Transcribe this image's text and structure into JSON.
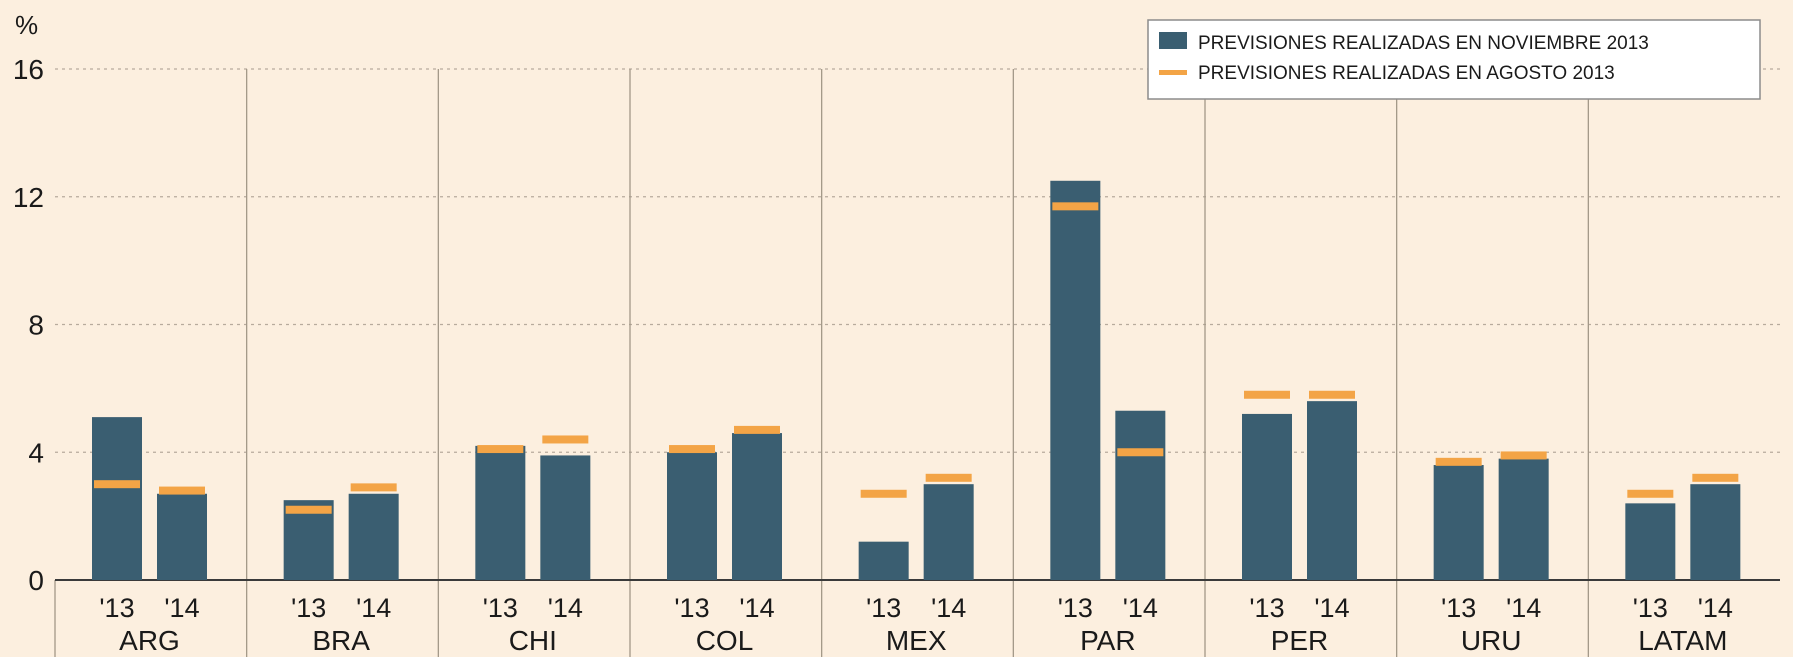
{
  "colors": {
    "background": "#fcefdf",
    "bar": "#3a5e71",
    "marker": "#f3a446",
    "grid": "#b7ab9d",
    "axis": "#3a3a3a"
  },
  "chart_data": {
    "type": "bar",
    "ylabel": "%",
    "ylim": [
      0,
      16
    ],
    "yticks": [
      0,
      4,
      8,
      12,
      16
    ],
    "grid": true,
    "legend_position": "top-right",
    "year_labels": [
      "'13",
      "'14"
    ],
    "categories": [
      "ARG",
      "BRA",
      "CHI",
      "COL",
      "MEX",
      "PAR",
      "PER",
      "URU",
      "LATAM"
    ],
    "series": [
      {
        "name": "PREVISIONES REALIZADAS EN NOVIEMBRE 2013",
        "kind": "bar",
        "values_13": [
          5.1,
          2.5,
          4.2,
          4.0,
          1.2,
          12.5,
          5.2,
          3.6,
          2.4
        ],
        "values_14": [
          2.7,
          2.7,
          3.9,
          4.6,
          3.0,
          5.3,
          5.6,
          3.8,
          3.0
        ]
      },
      {
        "name": "PREVISIONES REALIZADAS EN AGOSTO 2013",
        "kind": "marker",
        "values_13": [
          3.0,
          2.2,
          4.1,
          4.1,
          2.7,
          11.7,
          5.8,
          3.7,
          2.7
        ],
        "values_14": [
          2.8,
          2.9,
          4.4,
          4.7,
          3.2,
          4.0,
          5.8,
          3.9,
          3.2
        ]
      }
    ]
  }
}
